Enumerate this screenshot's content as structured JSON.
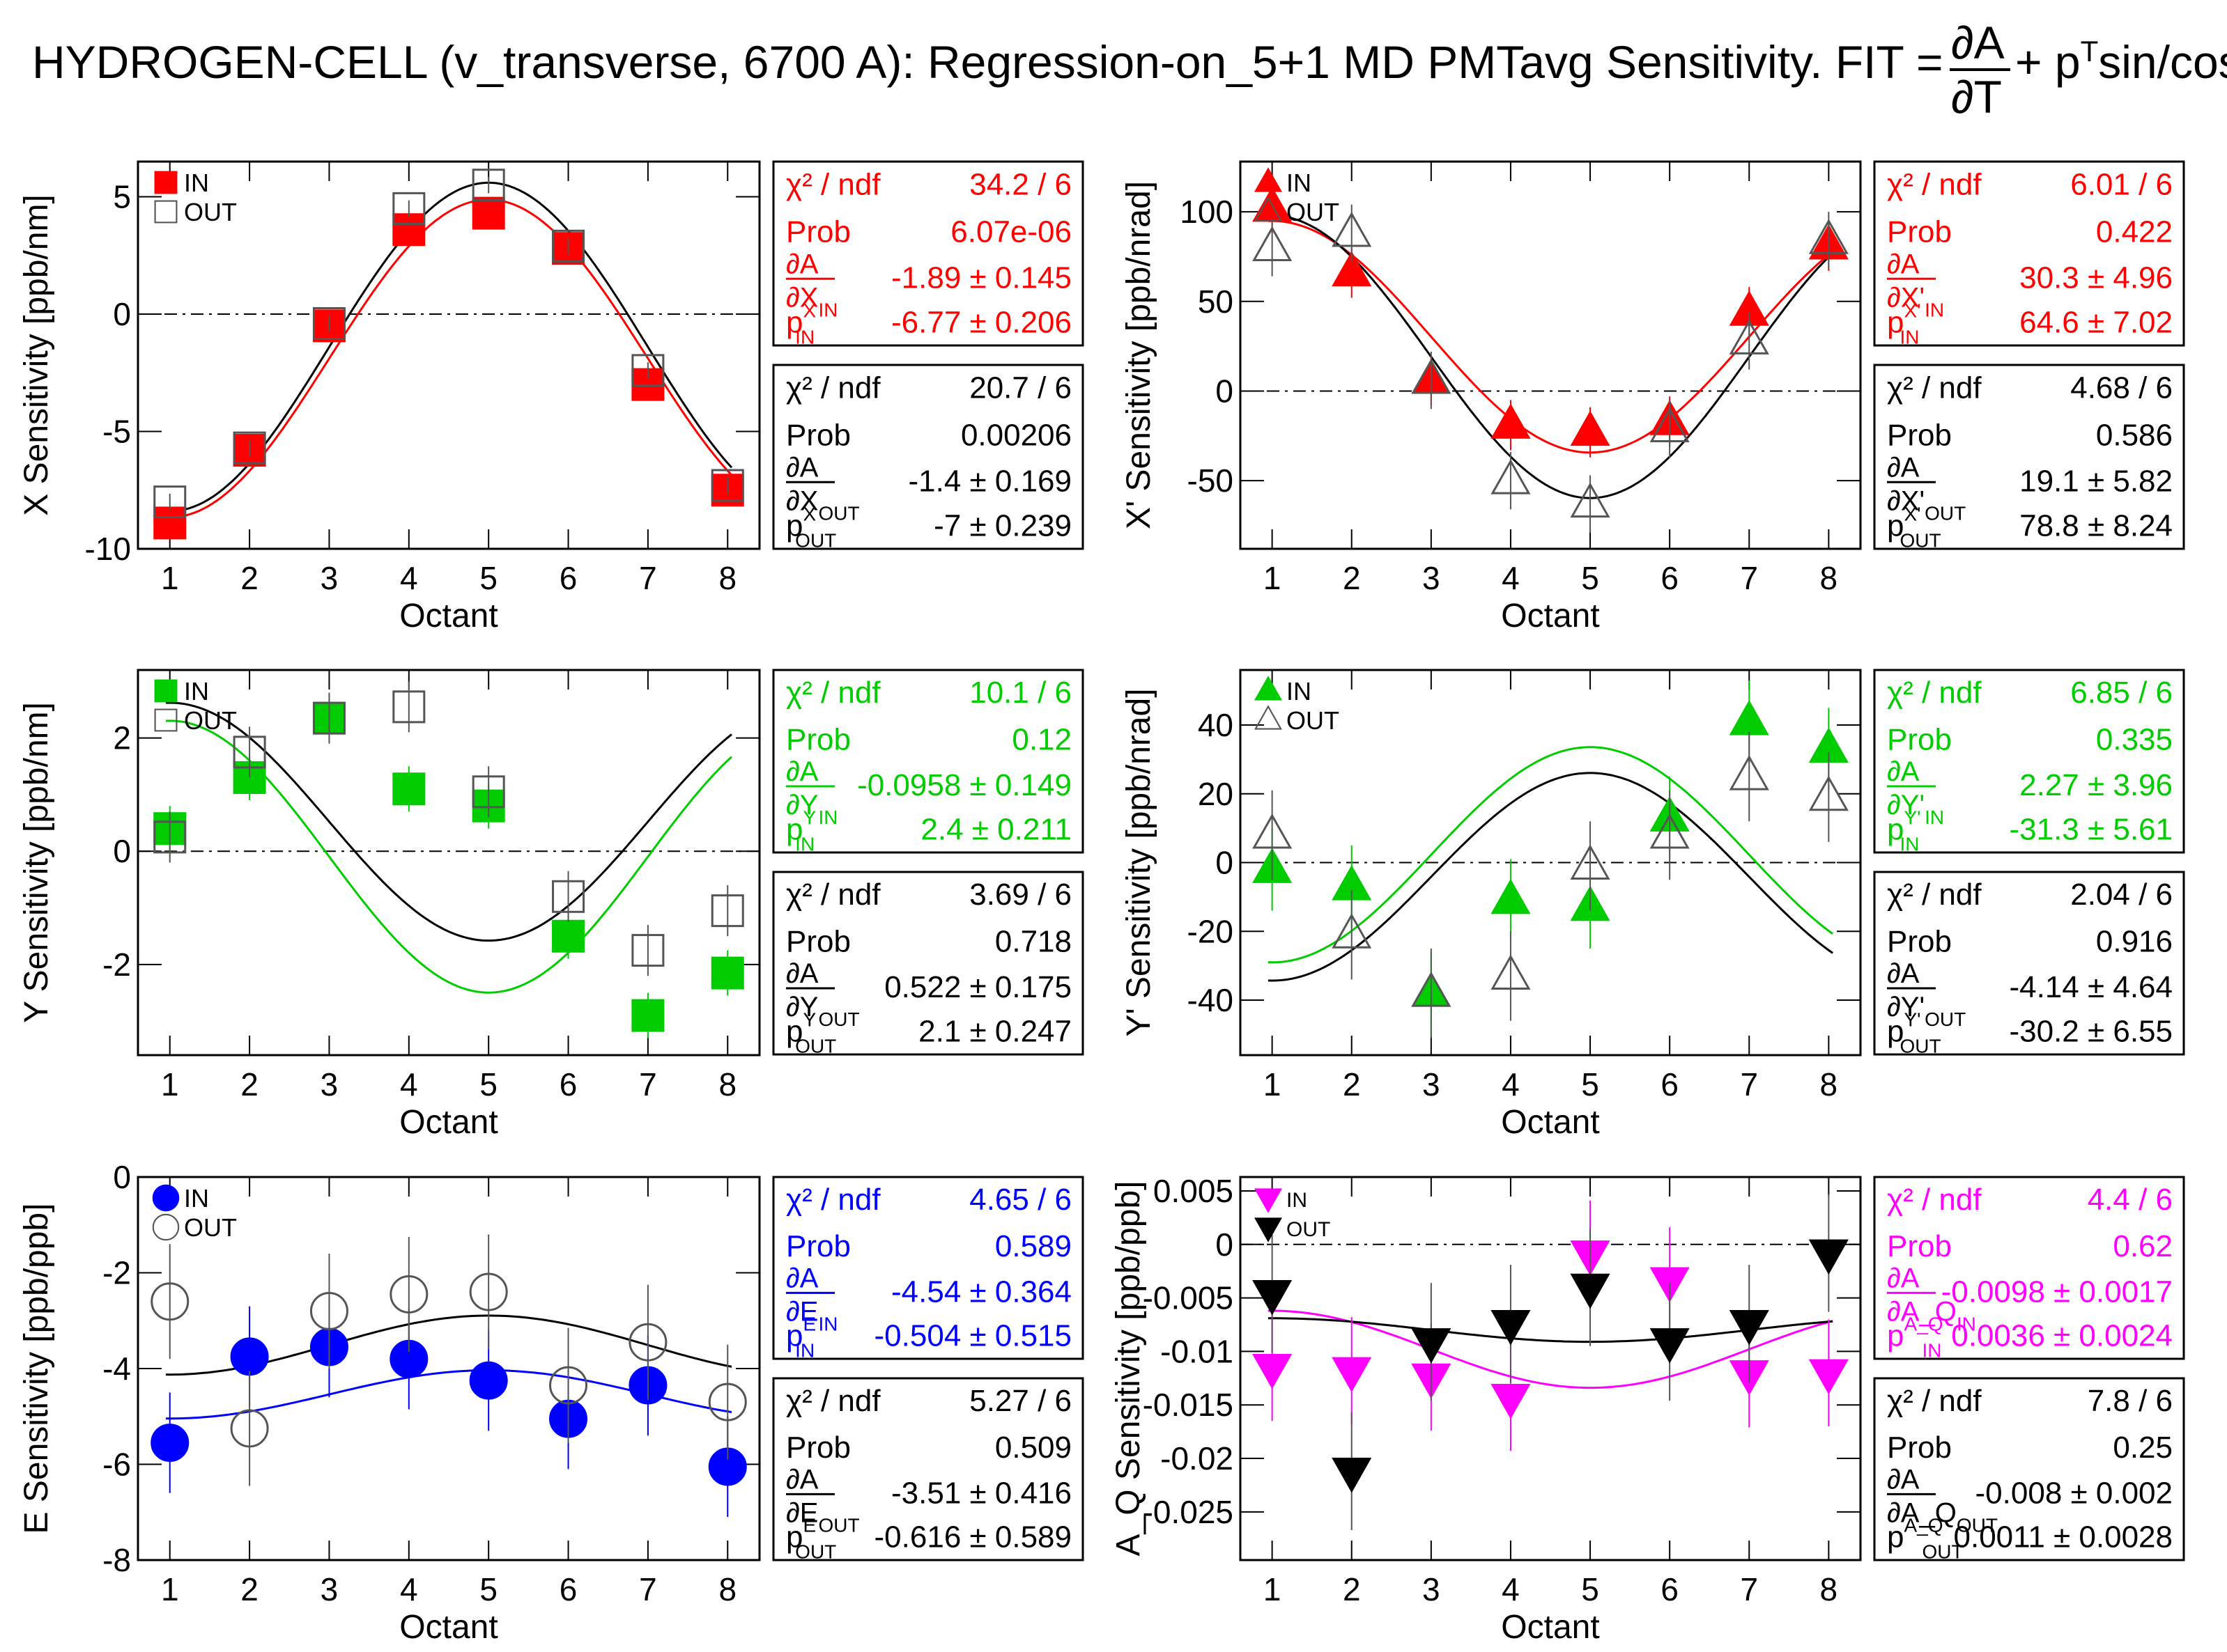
{
  "title": {
    "main": "HYDROGEN-CELL (v_transverse, 6700 A): Regression-on_5+1 MD PMTavg Sensitivity. FIT = ",
    "frac_num": "∂A",
    "frac_den": "∂T",
    "tail": " + p",
    "tail_sup": "T",
    "tail2": "sin/cos"
  },
  "colors": {
    "red": "#ff0000",
    "green": "#00cc00",
    "blue": "#0000ff",
    "magenta": "#ff00ff",
    "black": "#000000"
  },
  "chart_data": [
    {
      "type": "scatter",
      "ylabel": "X Sensitivity [ppb/nm]",
      "xlabel": "Octant",
      "ylim": [
        -10,
        6.5
      ],
      "yticks": [
        5,
        0,
        -5,
        -10
      ],
      "yticklabels": [
        "5",
        "0",
        "-5",
        "-10"
      ],
      "color": "red",
      "in_marker": "square",
      "out_marker": "square-open",
      "legend": [
        "IN",
        "OUT"
      ],
      "x": [
        1,
        2,
        3,
        4,
        5,
        6,
        7,
        8
      ],
      "series": [
        {
          "name": "IN",
          "values": [
            -8.9,
            -5.8,
            -0.5,
            3.6,
            4.3,
            2.8,
            -3.0,
            -7.5
          ],
          "errors": [
            0.3,
            0.3,
            0.3,
            0.3,
            0.3,
            0.3,
            0.3,
            0.3
          ],
          "fit": {
            "A": -1.89,
            "p": -6.77
          }
        },
        {
          "name": "OUT",
          "values": [
            -8.0,
            -5.7,
            -0.4,
            4.5,
            5.5,
            2.9,
            -2.4,
            -7.3
          ],
          "errors": [
            0.35,
            0.35,
            0.35,
            0.35,
            0.35,
            0.35,
            0.35,
            0.35
          ],
          "fit": {
            "A": -1.4,
            "p": -7
          }
        }
      ],
      "stats": [
        {
          "chi2_val": "34.2 / 6",
          "prob_val": "6.07e-06",
          "a_label": "X",
          "a_sub": "IN",
          "a_val": "-1.89",
          "a_err": "0.145",
          "p_sup": "X",
          "p_sub": "IN",
          "p_val": "-6.77",
          "p_err": "0.206"
        },
        {
          "chi2_val": "20.7 / 6",
          "prob_val": "0.00206",
          "a_label": "X",
          "a_sub": "OUT",
          "a_val": "-1.4",
          "a_err": "0.169",
          "p_sup": "X",
          "p_sub": "OUT",
          "p_val": "-7",
          "p_err": "0.239"
        }
      ]
    },
    {
      "type": "scatter",
      "ylabel": "X' Sensitivity [ppb/nrad]",
      "xlabel": "Octant",
      "ylim": [
        -88,
        128
      ],
      "yticks": [
        100,
        50,
        0,
        -50
      ],
      "yticklabels": [
        "100",
        "50",
        "0",
        "-50"
      ],
      "color": "red",
      "in_marker": "triangle-up",
      "out_marker": "triangle-up-open",
      "legend": [
        "IN",
        "OUT"
      ],
      "x": [
        1,
        2,
        3,
        4,
        5,
        6,
        7,
        8
      ],
      "series": [
        {
          "name": "IN",
          "values": [
            102,
            66,
            6,
            -19,
            -23,
            -17,
            44,
            81
          ],
          "errors": [
            14,
            14,
            14,
            14,
            14,
            14,
            14,
            14
          ],
          "fit": {
            "A": 30.3,
            "p": 64.6
          }
        },
        {
          "name": "OUT",
          "values": [
            80,
            88,
            6,
            -50,
            -63,
            -21,
            28,
            84
          ],
          "errors": [
            16,
            16,
            16,
            16,
            16,
            16,
            16,
            16
          ],
          "fit": {
            "A": 19.1,
            "p": 78.8
          }
        }
      ],
      "stats": [
        {
          "chi2_val": "6.01 / 6",
          "prob_val": "0.422",
          "a_label": "X'",
          "a_sub": "IN",
          "a_val": "30.3",
          "a_err": "4.96",
          "p_sup": "X'",
          "p_sub": "IN",
          "p_val": "64.6",
          "p_err": "7.02"
        },
        {
          "chi2_val": "4.68 / 6",
          "prob_val": "0.586",
          "a_label": "X'",
          "a_sub": "OUT",
          "a_val": "19.1",
          "a_err": "5.82",
          "p_sup": "X'",
          "p_sub": "OUT",
          "p_val": "78.8",
          "p_err": "8.24"
        }
      ]
    },
    {
      "type": "scatter",
      "ylabel": "Y Sensitivity [ppb/nm]",
      "xlabel": "Octant",
      "ylim": [
        -3.6,
        3.2
      ],
      "yticks": [
        2,
        0,
        -2
      ],
      "yticklabels": [
        "2",
        "0",
        "-2"
      ],
      "color": "green",
      "in_marker": "square",
      "out_marker": "square-open",
      "legend": [
        "IN",
        "OUT"
      ],
      "x": [
        1,
        2,
        3,
        4,
        5,
        6,
        7,
        8
      ],
      "series": [
        {
          "name": "IN",
          "values": [
            0.4,
            1.3,
            2.35,
            1.1,
            0.8,
            -1.5,
            -2.9,
            -2.15
          ],
          "errors": [
            0.4,
            0.4,
            0.4,
            0.4,
            0.4,
            0.4,
            0.4,
            0.4
          ],
          "fit": {
            "A": -0.0958,
            "p": 2.4
          }
        },
        {
          "name": "OUT",
          "values": [
            0.25,
            1.75,
            2.35,
            2.55,
            1.05,
            -0.8,
            -1.75,
            -1.05
          ],
          "errors": [
            0.45,
            0.45,
            0.45,
            0.45,
            0.45,
            0.45,
            0.45,
            0.45
          ],
          "fit": {
            "A": 0.522,
            "p": 2.1
          }
        }
      ],
      "stats": [
        {
          "chi2_val": "10.1 / 6",
          "prob_val": "0.12",
          "a_label": "Y",
          "a_sub": "IN",
          "a_val": "-0.0958",
          "a_err": "0.149",
          "p_sup": "Y",
          "p_sub": "IN",
          "p_val": "2.4",
          "p_err": "0.211"
        },
        {
          "chi2_val": "3.69 / 6",
          "prob_val": "0.718",
          "a_label": "Y",
          "a_sub": "OUT",
          "a_val": "0.522",
          "a_err": "0.175",
          "p_sup": "Y",
          "p_sub": "OUT",
          "p_val": "2.1",
          "p_err": "0.247"
        }
      ]
    },
    {
      "type": "scatter",
      "ylabel": "Y' Sensitivity [ppb/nrad]",
      "xlabel": "Octant",
      "ylim": [
        -56,
        56
      ],
      "yticks": [
        40,
        20,
        0,
        -20,
        -40
      ],
      "yticklabels": [
        "40",
        "20",
        "0",
        "-20",
        "-40"
      ],
      "color": "green",
      "in_marker": "triangle-up",
      "out_marker": "triangle-up-open",
      "legend": [
        "IN",
        "OUT"
      ],
      "x": [
        1,
        2,
        3,
        4,
        5,
        6,
        7,
        8
      ],
      "series": [
        {
          "name": "IN",
          "values": [
            -2,
            -7,
            -38,
            -11,
            -13,
            13,
            41,
            33
          ],
          "errors": [
            12,
            12,
            12,
            12,
            12,
            12,
            12,
            12
          ],
          "fit": {
            "A": 2.27,
            "p": -31.3
          }
        },
        {
          "name": "OUT",
          "values": [
            8,
            -21,
            -38,
            -33,
            -1,
            8,
            25,
            19
          ],
          "errors": [
            13,
            13,
            13,
            13,
            13,
            13,
            13,
            13
          ],
          "fit": {
            "A": -4.14,
            "p": -30.2
          }
        }
      ],
      "stats": [
        {
          "chi2_val": "6.85 / 6",
          "prob_val": "0.335",
          "a_label": "Y'",
          "a_sub": "IN",
          "a_val": "2.27",
          "a_err": "3.96",
          "p_sup": "Y'",
          "p_sub": "IN",
          "p_val": "-31.3",
          "p_err": "5.61"
        },
        {
          "chi2_val": "2.04 / 6",
          "prob_val": "0.916",
          "a_label": "Y'",
          "a_sub": "OUT",
          "a_val": "-4.14",
          "a_err": "4.64",
          "p_sup": "Y'",
          "p_sub": "OUT",
          "p_val": "-30.2",
          "p_err": "6.55"
        }
      ]
    },
    {
      "type": "scatter",
      "ylabel": "E Sensitivity [ppb/ppb]",
      "xlabel": "Octant",
      "ylim": [
        -8,
        0
      ],
      "yticks": [
        0,
        -2,
        -4,
        -6,
        -8
      ],
      "yticklabels": [
        "0",
        "-2",
        "-4",
        "-6",
        "-8"
      ],
      "color": "blue",
      "in_marker": "circle",
      "out_marker": "circle-open",
      "legend": [
        "IN",
        "OUT"
      ],
      "x": [
        1,
        2,
        3,
        4,
        5,
        6,
        7,
        8
      ],
      "series": [
        {
          "name": "IN",
          "values": [
            -5.55,
            -3.75,
            -3.55,
            -3.8,
            -4.25,
            -5.05,
            -4.35,
            -6.05
          ],
          "errors": [
            1.05,
            1.05,
            1.05,
            1.05,
            1.05,
            1.05,
            1.05,
            1.05
          ],
          "fit": {
            "A": -4.54,
            "p": -0.504
          }
        },
        {
          "name": "OUT",
          "values": [
            -2.6,
            -5.25,
            -2.8,
            -2.45,
            -2.4,
            -4.35,
            -3.45,
            -4.7
          ],
          "errors": [
            1.2,
            1.2,
            1.2,
            1.2,
            1.2,
            1.2,
            1.2,
            1.2
          ],
          "fit": {
            "A": -3.51,
            "p": -0.616
          }
        }
      ],
      "stats": [
        {
          "chi2_val": "4.65 / 6",
          "prob_val": "0.589",
          "a_label": "E",
          "a_sub": "IN",
          "a_val": "-4.54",
          "a_err": "0.364",
          "p_sup": "E",
          "p_sub": "IN",
          "p_val": "-0.504",
          "p_err": "0.515"
        },
        {
          "chi2_val": "5.27 / 6",
          "prob_val": "0.509",
          "a_label": "E",
          "a_sub": "OUT",
          "a_val": "-3.51",
          "a_err": "0.416",
          "p_sup": "E",
          "p_sub": "OUT",
          "p_val": "-0.616",
          "p_err": "0.589"
        }
      ]
    },
    {
      "type": "scatter",
      "ylabel": "A_Q Sensitivity [ppb/ppb]",
      "xlabel": "Octant",
      "ylim": [
        -0.0295,
        0.0063
      ],
      "yticks": [
        0.005,
        0,
        -0.005,
        -0.01,
        -0.015,
        -0.02,
        -0.025
      ],
      "yticklabels": [
        "0.005",
        "0",
        "-0.005",
        "-0.01",
        "-0.015",
        "-0.02",
        "-0.025"
      ],
      "color": "magenta",
      "out_color": "black",
      "in_marker": "triangle-down",
      "out_marker": "triangle-down",
      "legend": [
        "IN",
        "OUT"
      ],
      "x": [
        1,
        2,
        3,
        4,
        5,
        6,
        7,
        8
      ],
      "series": [
        {
          "name": "IN",
          "values": [
            -0.0115,
            -0.0118,
            -0.0124,
            -0.0143,
            -0.0009,
            -0.0034,
            -0.0121,
            -0.012
          ],
          "errors": [
            0.005,
            0.005,
            0.005,
            0.005,
            0.005,
            0.005,
            0.005,
            0.005
          ],
          "fit": {
            "A": -0.0098,
            "p": 0.0036
          }
        },
        {
          "name": "OUT",
          "values": [
            -0.0046,
            -0.0212,
            -0.0091,
            -0.0074,
            -0.004,
            -0.0091,
            -0.0074,
            -0.0008
          ],
          "errors": [
            0.0055,
            0.0055,
            0.0055,
            0.0055,
            0.0055,
            0.0055,
            0.0055,
            0.0055
          ],
          "fit": {
            "A": -0.008,
            "p": 0.0011
          }
        }
      ],
      "stats": [
        {
          "chi2_val": "4.4 / 6",
          "prob_val": "0.62",
          "a_label": "A_Q",
          "a_sub": "IN",
          "a_val": "-0.0098",
          "a_err": "0.0017",
          "p_sup": "A_Q",
          "p_sub": "IN",
          "p_val": "0.0036",
          "p_err": "0.0024"
        },
        {
          "chi2_val": "7.8 / 6",
          "prob_val": "0.25",
          "a_label": "A_Q",
          "a_sub": "OUT",
          "a_val": "-0.008",
          "a_err": "0.002",
          "p_sup": "A_Q",
          "p_sub": "OUT",
          "p_val": "0.0011",
          "p_err": "0.0028"
        }
      ]
    }
  ],
  "stat_labels": {
    "chi2": "χ² / ndf",
    "prob": "Prob",
    "dA": "∂A",
    "pm": "±"
  }
}
